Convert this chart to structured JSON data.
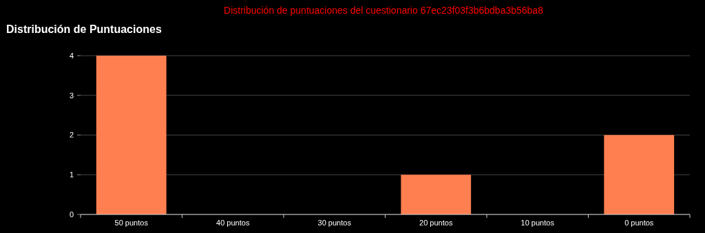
{
  "chart_data": {
    "type": "bar",
    "title": "Distribución de puntuaciones del cuestionario 67ec23f03f3b6bdba3b56ba8",
    "subtitle": "Distribución de Puntuaciones",
    "categories": [
      "50 puntos",
      "40 puntos",
      "30 puntos",
      "20 puntos",
      "10 puntos",
      "0 puntos"
    ],
    "values": [
      4,
      0,
      0,
      1,
      0,
      2
    ],
    "color": "#ff7f50",
    "ylim": [
      0,
      4
    ],
    "yticks": [
      0,
      1,
      2,
      3,
      4
    ],
    "grid": "y"
  }
}
